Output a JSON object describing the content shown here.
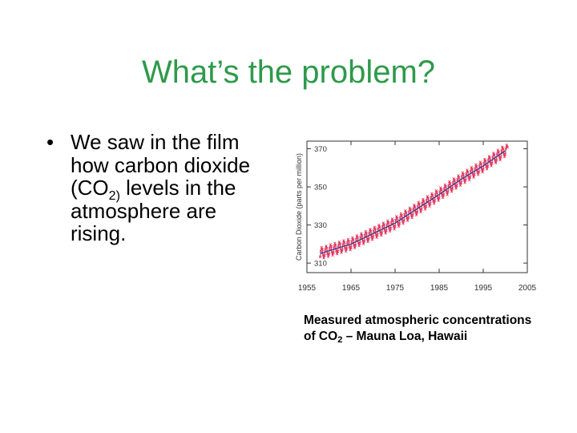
{
  "slide": {
    "title": "What’s the problem?",
    "bullet_symbol": "•",
    "bullet": {
      "line1": "We saw in the film",
      "line2": "how carbon dioxide",
      "line3_pre": "(CO",
      "line3_sub": "2)",
      "line3_post": " levels in the",
      "line4": "atmosphere are",
      "line5": "rising."
    },
    "caption": {
      "line1": "Measured atmospheric concentrations",
      "line2_pre": "of CO",
      "line2_sub": "2",
      "line2_post": " – Mauna Loa, Hawaii"
    }
  },
  "chart_data": {
    "type": "line",
    "title": "",
    "xlabel": "",
    "ylabel": "Carbon Dioxide (parts per million)",
    "xlim": [
      1955,
      2005
    ],
    "ylim": [
      305,
      374
    ],
    "x_ticks": [
      1955,
      1965,
      1975,
      1985,
      1995,
      2005
    ],
    "y_ticks": [
      310,
      330,
      350,
      370
    ],
    "grid": false,
    "series": [
      {
        "type": "trend",
        "color": "#3a3a8a",
        "x": [
          1958,
          1960,
          1965,
          1970,
          1975,
          1980,
          1985,
          1990,
          1995,
          2000
        ],
        "values": [
          315,
          316.5,
          320,
          325.5,
          331,
          338.5,
          346,
          354,
          361,
          369
        ]
      },
      {
        "type": "seasonal",
        "color": "#e0335a",
        "seasonal_amplitude_ppm": 3
      }
    ]
  }
}
